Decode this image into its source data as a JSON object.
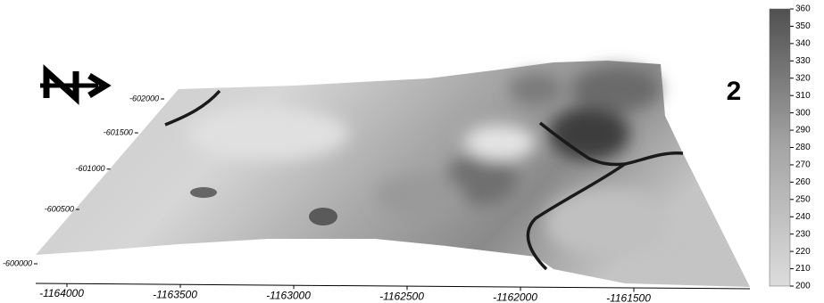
{
  "panel_label": "2",
  "x_axis": {
    "ticks": [
      -1164000,
      -1163500,
      -1163000,
      -1162500,
      -1162000,
      -1161500
    ]
  },
  "y_axis": {
    "ticks": [
      -600000,
      -600500,
      -601000,
      -601500,
      -602000
    ]
  },
  "colorbar": {
    "range": [
      200,
      360
    ],
    "ticks": [
      200,
      210,
      220,
      230,
      240,
      250,
      260,
      270,
      280,
      290,
      300,
      310,
      320,
      330,
      340,
      350,
      360
    ]
  }
}
